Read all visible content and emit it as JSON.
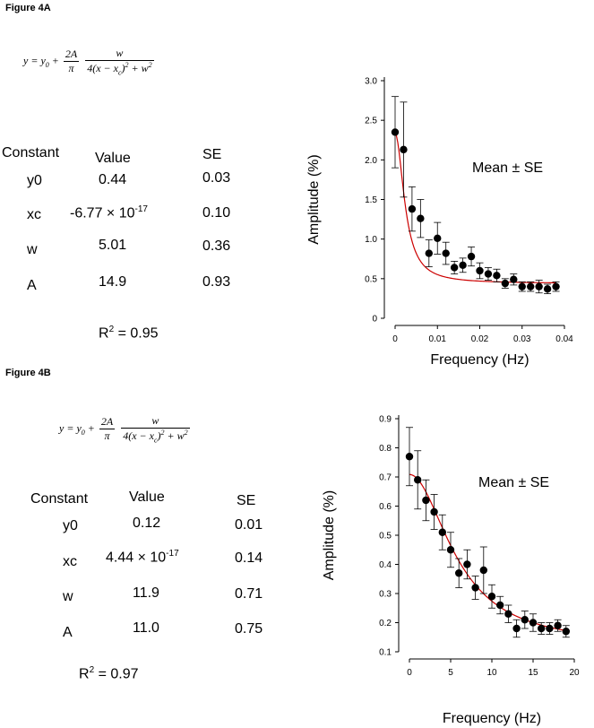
{
  "figure_a": {
    "label": "Figure 4A",
    "equation": {
      "lhs": "y",
      "eq": "=",
      "y0_base": "y",
      "y0_sub": "0",
      "plus": "+",
      "coef_num": "2A",
      "coef_den": "π",
      "frac_num": "w",
      "frac_den_a": "4(x − x",
      "frac_den_sub": "c",
      "frac_den_b": ")",
      "frac_den_sup": "2",
      "frac_den_c": " + w",
      "frac_den_sup2": "2"
    },
    "table": {
      "headers": [
        "Constant",
        "Value",
        "SE"
      ],
      "rows": [
        {
          "constant": "y0",
          "value": "0.44",
          "value_exp": "",
          "se": "0.03"
        },
        {
          "constant": "xc",
          "value": "-6.77 ×  10",
          "value_exp": "-17",
          "se": "0.10"
        },
        {
          "constant": "w",
          "value": "5.01",
          "value_exp": "",
          "se": "0.36"
        },
        {
          "constant": "A",
          "value": "14.9",
          "value_exp": "",
          "se": "0.93"
        }
      ],
      "r2_base": "R",
      "r2_sup": "2",
      "r2_value": " = 0.95"
    }
  },
  "figure_b": {
    "label": "Figure 4B",
    "equation": {
      "lhs": "y",
      "eq": "=",
      "y0_base": "y",
      "y0_sub": "0",
      "plus": "+",
      "coef_num": "2A",
      "coef_den": "π",
      "frac_num": "w",
      "frac_den_a": "4(x − x",
      "frac_den_sub": "c",
      "frac_den_b": ")",
      "frac_den_sup": "2",
      "frac_den_c": " + w",
      "frac_den_sup2": "2"
    },
    "table": {
      "headers": [
        "Constant",
        "Value",
        "SE"
      ],
      "rows": [
        {
          "constant": "y0",
          "value": "0.12",
          "value_exp": "",
          "se": "0.01"
        },
        {
          "constant": "xc",
          "value": "4.44 × 10",
          "value_exp": "-17",
          "se": "0.14"
        },
        {
          "constant": "w",
          "value": "11.9",
          "value_exp": "",
          "se": "0.71"
        },
        {
          "constant": "A",
          "value": "11.0",
          "value_exp": "",
          "se": "0.75"
        }
      ],
      "r2_base": "R",
      "r2_sup": "2",
      "r2_value": " = 0.97"
    }
  },
  "chart_data": [
    {
      "type": "scatter",
      "xlabel": "Frequency (Hz)",
      "ylabel": "Amplitude (%)",
      "annotation": "Mean ±  SE",
      "xlim": [
        0,
        0.04
      ],
      "ylim": [
        0,
        3.0
      ],
      "xticks": [
        0,
        0.01,
        0.02,
        0.03,
        0.04
      ],
      "xtick_labels": [
        "0",
        "0.01",
        "0.02",
        "0.03",
        "0.04"
      ],
      "yticks": [
        0,
        0.5,
        1.0,
        1.5,
        2.0,
        2.5,
        3.0
      ],
      "ytick_labels": [
        "0",
        "0.5",
        "1.0",
        "1.5",
        "2.0",
        "2.5",
        "3.0"
      ],
      "grid": false,
      "marker_color": "#000000",
      "fit_color": "#cc0000",
      "x": [
        0.0,
        0.002,
        0.004,
        0.006,
        0.008,
        0.01,
        0.012,
        0.014,
        0.016,
        0.018,
        0.02,
        0.022,
        0.024,
        0.026,
        0.028,
        0.03,
        0.032,
        0.034,
        0.036,
        0.038
      ],
      "y": [
        2.35,
        2.13,
        1.38,
        1.26,
        0.82,
        1.01,
        0.82,
        0.64,
        0.67,
        0.78,
        0.6,
        0.56,
        0.54,
        0.44,
        0.49,
        0.4,
        0.4,
        0.4,
        0.37,
        0.4
      ],
      "err": [
        0.45,
        0.6,
        0.28,
        0.24,
        0.17,
        0.2,
        0.14,
        0.08,
        0.09,
        0.12,
        0.1,
        0.08,
        0.08,
        0.06,
        0.07,
        0.06,
        0.06,
        0.08,
        0.06,
        0.06
      ],
      "fit": {
        "model": "lorentzian",
        "y0": 0.44,
        "xc": 0,
        "w": 0.00501,
        "A": 0.0149
      }
    },
    {
      "type": "scatter",
      "xlabel": "Frequency (Hz)",
      "ylabel": "Amplitude (%)",
      "annotation": "Mean ±  SE",
      "xlim": [
        0,
        20
      ],
      "ylim": [
        0.1,
        0.9
      ],
      "xticks": [
        0,
        5,
        10,
        15,
        20
      ],
      "xtick_labels": [
        "0",
        "5",
        "10",
        "15",
        "20"
      ],
      "yticks": [
        0.1,
        0.2,
        0.3,
        0.4,
        0.5,
        0.6,
        0.7,
        0.8,
        0.9
      ],
      "ytick_labels": [
        "0.1",
        "0.2",
        "0.3",
        "0.4",
        "0.5",
        "0.6",
        "0.7",
        "0.8",
        "0.9"
      ],
      "grid": false,
      "marker_color": "#000000",
      "fit_color": "#cc0000",
      "x": [
        0,
        1,
        2,
        3,
        4,
        5,
        6,
        7,
        8,
        9,
        10,
        11,
        12,
        13,
        14,
        15,
        16,
        17,
        18,
        19
      ],
      "y": [
        0.77,
        0.69,
        0.62,
        0.58,
        0.51,
        0.45,
        0.37,
        0.4,
        0.32,
        0.38,
        0.29,
        0.26,
        0.23,
        0.18,
        0.21,
        0.2,
        0.18,
        0.18,
        0.19,
        0.17
      ],
      "err": [
        0.1,
        0.1,
        0.07,
        0.06,
        0.06,
        0.06,
        0.05,
        0.05,
        0.04,
        0.08,
        0.04,
        0.03,
        0.03,
        0.03,
        0.03,
        0.03,
        0.02,
        0.02,
        0.02,
        0.02
      ],
      "fit": {
        "model": "lorentzian",
        "y0": 0.12,
        "xc": 0,
        "w": 11.9,
        "A": 11.0
      }
    }
  ]
}
